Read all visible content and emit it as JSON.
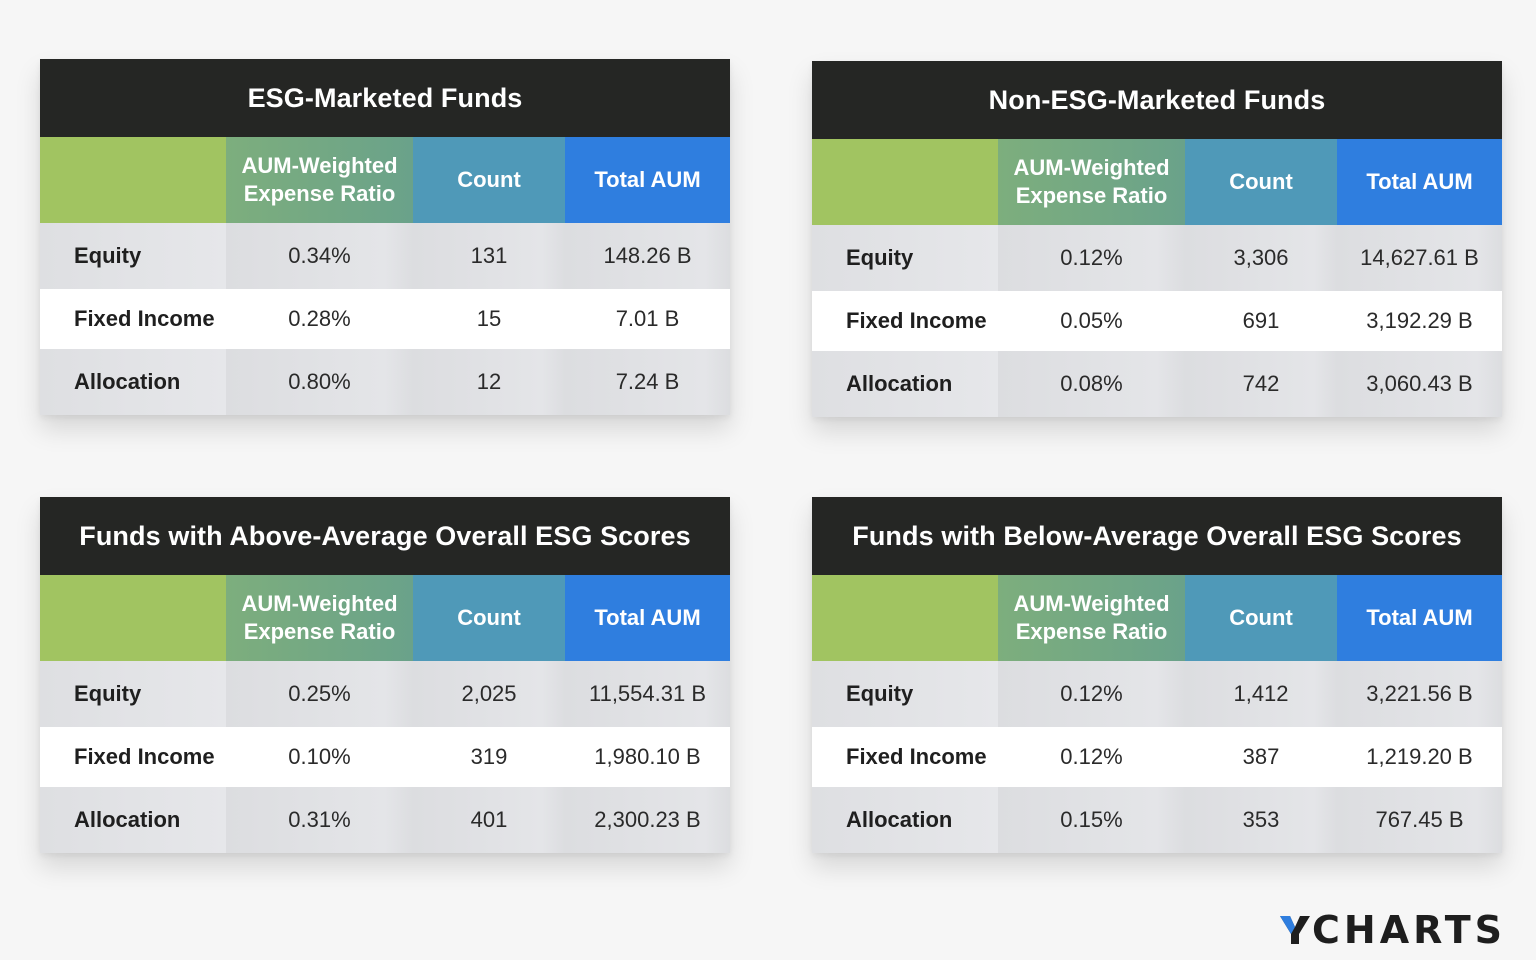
{
  "columns": {
    "ratio_line1": "AUM-Weighted",
    "ratio_line2": "Expense Ratio",
    "count": "Count",
    "total_aum": "Total AUM"
  },
  "tables": [
    {
      "title": "ESG-Marketed Funds",
      "rows": [
        {
          "label": "Equity",
          "ratio": "0.34%",
          "count": "131",
          "aum": "148.26 B"
        },
        {
          "label": "Fixed Income",
          "ratio": "0.28%",
          "count": "15",
          "aum": "7.01 B"
        },
        {
          "label": "Allocation",
          "ratio": "0.80%",
          "count": "12",
          "aum": "7.24 B"
        }
      ]
    },
    {
      "title": "Non-ESG-Marketed Funds",
      "rows": [
        {
          "label": "Equity",
          "ratio": "0.12%",
          "count": "3,306",
          "aum": "14,627.61 B"
        },
        {
          "label": "Fixed Income",
          "ratio": "0.05%",
          "count": "691",
          "aum": "3,192.29 B"
        },
        {
          "label": "Allocation",
          "ratio": "0.08%",
          "count": "742",
          "aum": "3,060.43 B"
        }
      ]
    },
    {
      "title": "Funds with Above-Average Overall ESG Scores",
      "rows": [
        {
          "label": "Equity",
          "ratio": "0.25%",
          "count": "2,025",
          "aum": "11,554.31 B"
        },
        {
          "label": "Fixed Income",
          "ratio": "0.10%",
          "count": "319",
          "aum": "1,980.10 B"
        },
        {
          "label": "Allocation",
          "ratio": "0.31%",
          "count": "401",
          "aum": "2,300.23 B"
        }
      ]
    },
    {
      "title": "Funds with Below-Average Overall ESG Scores",
      "rows": [
        {
          "label": "Equity",
          "ratio": "0.12%",
          "count": "1,412",
          "aum": "3,221.56 B"
        },
        {
          "label": "Fixed Income",
          "ratio": "0.12%",
          "count": "387",
          "aum": "1,219.20 B"
        },
        {
          "label": "Allocation",
          "ratio": "0.15%",
          "count": "353",
          "aum": "767.45 B"
        }
      ]
    }
  ],
  "logo": {
    "text": "CHARTS",
    "accent_color": "#2f7edf"
  }
}
